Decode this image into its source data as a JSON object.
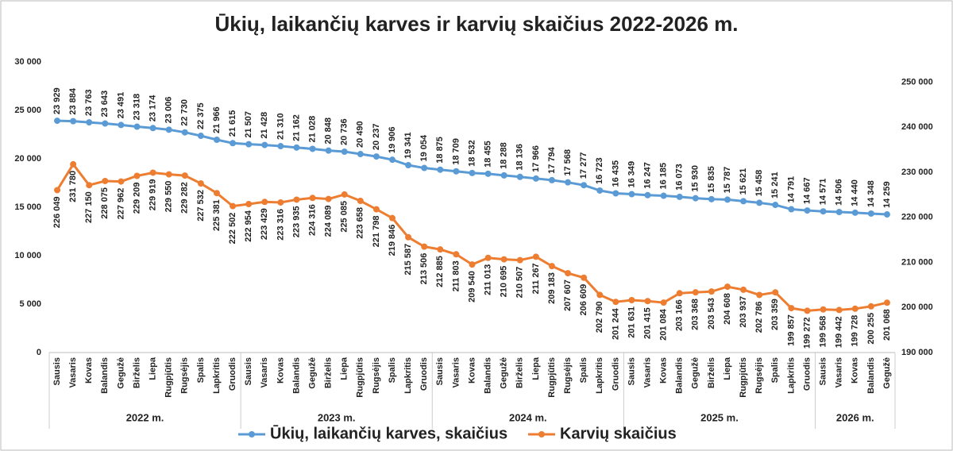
{
  "chart_data": {
    "type": "line",
    "title": "Ūkių, laikančių karves ir karvių skaičius 2022-2026 m.",
    "groups": [
      {
        "label": "2022 m.",
        "categories": [
          "Sausis",
          "Vasaris",
          "Kovas",
          "Balandis",
          "Gegužė",
          "Birželis",
          "Liepa",
          "Rugpjūtis",
          "Rugsėjis",
          "Spalis",
          "Lapkritis",
          "Gruodis"
        ]
      },
      {
        "label": "2023 m.",
        "categories": [
          "Sausis",
          "Vasaris",
          "Kovas",
          "Balandis",
          "Gegužė",
          "Birželis",
          "Liepa",
          "Rugpjūtis",
          "Rugsėjis",
          "Spalis",
          "Lapkritis",
          "Gruodis"
        ]
      },
      {
        "label": "2024 m.",
        "categories": [
          "Sausis",
          "Vasaris",
          "Kovas",
          "Balandis",
          "Gegužė",
          "Birželis",
          "Liepa",
          "Rugpjūtis",
          "Rugsėjis",
          "Spalis",
          "Lapkritis",
          "Gruodis"
        ]
      },
      {
        "label": "2025 m.",
        "categories": [
          "Sausis",
          "Vasaris",
          "Kovas",
          "Balandis",
          "Gegužė",
          "Birželis",
          "Liepa",
          "Rugpjūtis",
          "Rugsėjis",
          "Spalis",
          "Lapkritis",
          "Gruodis"
        ]
      },
      {
        "label": "2026 m.",
        "categories": [
          "Sausis",
          "Vasaris",
          "Kovas",
          "Balandis",
          "Gegužė"
        ]
      }
    ],
    "series": [
      {
        "name": "Ūkių, laikančių karves, skaičius",
        "color": "#5b9bd5",
        "values": [
          23929,
          23884,
          23763,
          23643,
          23491,
          23318,
          23174,
          23006,
          22730,
          22375,
          21966,
          21615,
          21507,
          21428,
          21310,
          21162,
          21028,
          20848,
          20736,
          20490,
          20237,
          19906,
          19341,
          19054,
          18875,
          18709,
          18532,
          18455,
          18288,
          18136,
          17966,
          17794,
          17568,
          17277,
          16723,
          16435,
          16349,
          16247,
          16185,
          16073,
          15930,
          15835,
          15787,
          15621,
          15458,
          15241,
          14791,
          14667,
          14571,
          14506,
          14440,
          14348,
          14259
        ],
        "value_labels": [
          "23 929",
          "23 884",
          "23 763",
          "23 643",
          "23 491",
          "23 318",
          "23 174",
          "23 006",
          "22 730",
          "22 375",
          "21 966",
          "21 615",
          "21 507",
          "21 428",
          "21 310",
          "21 162",
          "21 028",
          "20 848",
          "20 736",
          "20 490",
          "20 237",
          "19 906",
          "19 341",
          "19 054",
          "18 875",
          "18 709",
          "18 532",
          "18 455",
          "18 288",
          "18 136",
          "17 966",
          "17 794",
          "17 568",
          "17 277",
          "16 723",
          "16 435",
          "16 349",
          "16 247",
          "16 185",
          "16 073",
          "15 930",
          "15 835",
          "15 787",
          "15 621",
          "15 458",
          "15 241",
          "14 791",
          "14 667",
          "14 571",
          "14 506",
          "14 440",
          "14 348",
          "14 259"
        ]
      },
      {
        "name": "Karvių skaičius",
        "color": "#ed7d31",
        "axis": "y2",
        "values": [
          226049,
          231780,
          227150,
          228075,
          227962,
          229209,
          229919,
          229550,
          229282,
          227532,
          225381,
          222502,
          222954,
          223429,
          223316,
          223935,
          224316,
          224089,
          225085,
          223658,
          221798,
          219846,
          215587,
          213506,
          212885,
          211803,
          209540,
          211013,
          210695,
          210507,
          211267,
          209183,
          207607,
          206609,
          202790,
          201244,
          201631,
          201415,
          201084,
          203166,
          203368,
          203543,
          204608,
          203937,
          202786,
          203359,
          199857,
          199272,
          199568,
          199442,
          199728,
          200255,
          201068
        ],
        "value_labels": [
          "226 049",
          "231 780",
          "227 150",
          "228 075",
          "227 962",
          "229 209",
          "229 919",
          "229 550",
          "229 282",
          "227 532",
          "225 381",
          "222 502",
          "222 954",
          "223 429",
          "223 316",
          "223 935",
          "224 316",
          "224 089",
          "225 085",
          "223 658",
          "221 798",
          "219 846",
          "215 587",
          "213 506",
          "212 885",
          "211 803",
          "209 540",
          "211 013",
          "210 695",
          "210 507",
          "211 267",
          "209 183",
          "207 607",
          "206 609",
          "202 790",
          "201 244",
          "201 631",
          "201 415",
          "201 084",
          "203 166",
          "203 368",
          "203 543",
          "204 608",
          "203 937",
          "202 786",
          "203 359",
          "199 857",
          "199 272",
          "199 568",
          "199 442",
          "199 728",
          "200 255",
          "201 068"
        ]
      }
    ],
    "ylim": [
      0,
      30000
    ],
    "yticks": [
      0,
      {
        "value": 5000,
        "label": "5 000"
      },
      {
        "value": 10000,
        "label": "10 000"
      },
      {
        "value": 15000,
        "label": "15 000"
      },
      {
        "value": 20000,
        "label": "20 000"
      },
      {
        "value": 25000,
        "label": "25 000"
      },
      {
        "value": 30000,
        "label": "30 000"
      }
    ],
    "y2lim": [
      190000,
      254500
    ],
    "y2ticks": [
      {
        "value": 190000,
        "label": "190 000"
      },
      {
        "value": 200000,
        "label": "200 000"
      },
      {
        "value": 210000,
        "label": "210 000"
      },
      {
        "value": 220000,
        "label": "220 000"
      },
      {
        "value": 230000,
        "label": "230 000"
      },
      {
        "value": 240000,
        "label": "240 000"
      },
      {
        "value": 250000,
        "label": "250 000"
      }
    ],
    "grid": false,
    "legend": "bottom"
  }
}
